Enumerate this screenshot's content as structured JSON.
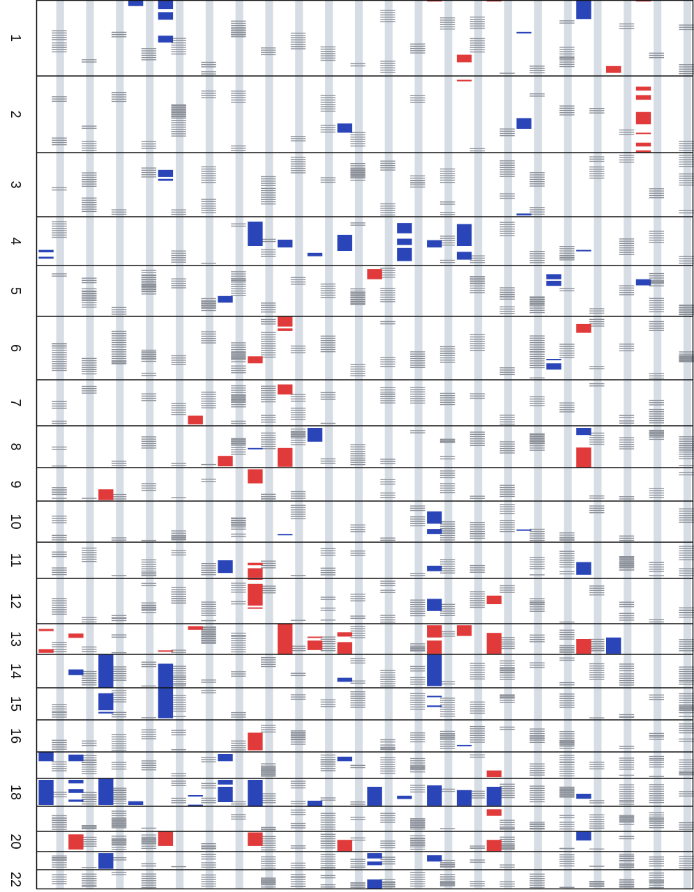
{
  "title": "",
  "colors": {
    "gain": "#e03a3a",
    "loss": "#2a45b8",
    "marker": "#8a8f98",
    "lane": "#d7dde4",
    "border": "#111111",
    "background": "#ffffff"
  },
  "chart_data": {
    "type": "heatmap",
    "chromosomes": [
      "1",
      "2",
      "3",
      "4",
      "5",
      "6",
      "7",
      "8",
      "9",
      "10",
      "11",
      "12",
      "13",
      "14",
      "15",
      "16",
      "17",
      "18",
      "19",
      "20",
      "21",
      "22"
    ],
    "chromosome_labels": [
      "1",
      "2",
      "3",
      "4",
      "5",
      "6",
      "7",
      "8",
      "9",
      "10",
      "11",
      "12",
      "13",
      "14",
      "15",
      "16",
      "",
      "18",
      "",
      "20",
      "",
      "22"
    ],
    "sample_count": 22,
    "relative_lengths": [
      1.0,
      1.0,
      0.85,
      0.65,
      0.67,
      0.85,
      0.61,
      0.55,
      0.45,
      0.53,
      0.47,
      0.59,
      0.41,
      0.44,
      0.42,
      0.42,
      0.35,
      0.38,
      0.33,
      0.28,
      0.22,
      0.27
    ],
    "segments": [
      {
        "chr": "1",
        "sample": 3,
        "start": 0.0,
        "end": 0.08,
        "state": "loss"
      },
      {
        "chr": "1",
        "sample": 4,
        "start": 0.0,
        "end": 0.12,
        "state": "loss"
      },
      {
        "chr": "1",
        "sample": 4,
        "start": 0.16,
        "end": 0.26,
        "state": "loss"
      },
      {
        "chr": "1",
        "sample": 4,
        "start": 0.47,
        "end": 0.56,
        "state": "loss"
      },
      {
        "chr": "1",
        "sample": 13,
        "start": 0.0,
        "end": 0.02,
        "state": "gain"
      },
      {
        "chr": "1",
        "sample": 14,
        "start": 0.72,
        "end": 0.82,
        "state": "gain"
      },
      {
        "chr": "1",
        "sample": 15,
        "start": 0.0,
        "end": 0.02,
        "state": "gain"
      },
      {
        "chr": "1",
        "sample": 16,
        "start": 0.42,
        "end": 0.44,
        "state": "loss"
      },
      {
        "chr": "1",
        "sample": 18,
        "start": 0.0,
        "end": 0.25,
        "state": "loss"
      },
      {
        "chr": "1",
        "sample": 19,
        "start": 0.87,
        "end": 0.96,
        "state": "gain"
      },
      {
        "chr": "1",
        "sample": 20,
        "start": 0.0,
        "end": 0.02,
        "state": "gain"
      },
      {
        "chr": "2",
        "sample": 10,
        "start": 0.62,
        "end": 0.74,
        "state": "loss"
      },
      {
        "chr": "2",
        "sample": 14,
        "start": 0.05,
        "end": 0.07,
        "state": "gain"
      },
      {
        "chr": "2",
        "sample": 16,
        "start": 0.55,
        "end": 0.69,
        "state": "loss"
      },
      {
        "chr": "2",
        "sample": 20,
        "start": 0.14,
        "end": 0.19,
        "state": "gain"
      },
      {
        "chr": "2",
        "sample": 20,
        "start": 0.25,
        "end": 0.31,
        "state": "gain"
      },
      {
        "chr": "2",
        "sample": 20,
        "start": 0.47,
        "end": 0.63,
        "state": "gain"
      },
      {
        "chr": "2",
        "sample": 20,
        "start": 0.74,
        "end": 0.75,
        "state": "gain"
      },
      {
        "chr": "2",
        "sample": 20,
        "start": 0.87,
        "end": 0.92,
        "state": "gain"
      },
      {
        "chr": "2",
        "sample": 20,
        "start": 0.97,
        "end": 1.0,
        "state": "gain"
      },
      {
        "chr": "3",
        "sample": 4,
        "start": 0.27,
        "end": 0.38,
        "state": "loss"
      },
      {
        "chr": "3",
        "sample": 4,
        "start": 0.41,
        "end": 0.44,
        "state": "loss"
      },
      {
        "chr": "3",
        "sample": 16,
        "start": 0.95,
        "end": 0.98,
        "state": "loss"
      },
      {
        "chr": "4",
        "sample": 0,
        "start": 0.68,
        "end": 0.73,
        "state": "loss"
      },
      {
        "chr": "4",
        "sample": 0,
        "start": 0.82,
        "end": 0.86,
        "state": "loss"
      },
      {
        "chr": "4",
        "sample": 7,
        "start": 0.1,
        "end": 0.6,
        "state": "loss"
      },
      {
        "chr": "4",
        "sample": 8,
        "start": 0.47,
        "end": 0.63,
        "state": "loss"
      },
      {
        "chr": "4",
        "sample": 9,
        "start": 0.74,
        "end": 0.81,
        "state": "loss"
      },
      {
        "chr": "4",
        "sample": 10,
        "start": 0.37,
        "end": 0.7,
        "state": "loss"
      },
      {
        "chr": "4",
        "sample": 12,
        "start": 0.13,
        "end": 0.34,
        "state": "loss"
      },
      {
        "chr": "4",
        "sample": 12,
        "start": 0.45,
        "end": 0.58,
        "state": "loss"
      },
      {
        "chr": "4",
        "sample": 12,
        "start": 0.64,
        "end": 0.91,
        "state": "loss"
      },
      {
        "chr": "4",
        "sample": 13,
        "start": 0.48,
        "end": 0.63,
        "state": "loss"
      },
      {
        "chr": "4",
        "sample": 14,
        "start": 0.15,
        "end": 0.6,
        "state": "loss"
      },
      {
        "chr": "4",
        "sample": 14,
        "start": 0.72,
        "end": 0.88,
        "state": "loss"
      },
      {
        "chr": "4",
        "sample": 18,
        "start": 0.68,
        "end": 0.71,
        "state": "loss"
      },
      {
        "chr": "5",
        "sample": 11,
        "start": 0.07,
        "end": 0.27,
        "state": "gain"
      },
      {
        "chr": "5",
        "sample": 6,
        "start": 0.6,
        "end": 0.73,
        "state": "loss"
      },
      {
        "chr": "5",
        "sample": 17,
        "start": 0.17,
        "end": 0.27,
        "state": "loss"
      },
      {
        "chr": "5",
        "sample": 17,
        "start": 0.3,
        "end": 0.4,
        "state": "loss"
      },
      {
        "chr": "5",
        "sample": 20,
        "start": 0.27,
        "end": 0.39,
        "state": "loss"
      },
      {
        "chr": "6",
        "sample": 8,
        "start": 0.0,
        "end": 0.16,
        "state": "gain"
      },
      {
        "chr": "6",
        "sample": 8,
        "start": 0.19,
        "end": 0.23,
        "state": "gain"
      },
      {
        "chr": "6",
        "sample": 18,
        "start": 0.12,
        "end": 0.26,
        "state": "gain"
      },
      {
        "chr": "6",
        "sample": 7,
        "start": 0.63,
        "end": 0.74,
        "state": "gain"
      },
      {
        "chr": "6",
        "sample": 17,
        "start": 0.67,
        "end": 0.69,
        "state": "loss"
      },
      {
        "chr": "6",
        "sample": 17,
        "start": 0.74,
        "end": 0.84,
        "state": "loss"
      },
      {
        "chr": "7",
        "sample": 8,
        "start": 0.1,
        "end": 0.32,
        "state": "gain"
      },
      {
        "chr": "7",
        "sample": 5,
        "start": 0.78,
        "end": 0.97,
        "state": "gain"
      },
      {
        "chr": "8",
        "sample": 7,
        "start": 0.53,
        "end": 0.55,
        "state": "loss"
      },
      {
        "chr": "8",
        "sample": 9,
        "start": 0.05,
        "end": 0.38,
        "state": "loss"
      },
      {
        "chr": "8",
        "sample": 8,
        "start": 0.53,
        "end": 0.98,
        "state": "gain"
      },
      {
        "chr": "8",
        "sample": 6,
        "start": 0.72,
        "end": 0.97,
        "state": "gain"
      },
      {
        "chr": "8",
        "sample": 18,
        "start": 0.05,
        "end": 0.22,
        "state": "loss"
      },
      {
        "chr": "8",
        "sample": 18,
        "start": 0.52,
        "end": 1.0,
        "state": "gain"
      },
      {
        "chr": "9",
        "sample": 2,
        "start": 0.65,
        "end": 0.97,
        "state": "gain"
      },
      {
        "chr": "9",
        "sample": 7,
        "start": 0.05,
        "end": 0.47,
        "state": "gain"
      },
      {
        "chr": "10",
        "sample": 13,
        "start": 0.25,
        "end": 0.55,
        "state": "loss"
      },
      {
        "chr": "10",
        "sample": 13,
        "start": 0.68,
        "end": 0.8,
        "state": "loss"
      },
      {
        "chr": "10",
        "sample": 8,
        "start": 0.8,
        "end": 0.83,
        "state": "loss"
      },
      {
        "chr": "10",
        "sample": 16,
        "start": 0.69,
        "end": 0.72,
        "state": "loss"
      },
      {
        "chr": "11",
        "sample": 6,
        "start": 0.5,
        "end": 0.85,
        "state": "loss"
      },
      {
        "chr": "11",
        "sample": 7,
        "start": 0.57,
        "end": 0.64,
        "state": "gain"
      },
      {
        "chr": "11",
        "sample": 7,
        "start": 0.72,
        "end": 0.98,
        "state": "gain"
      },
      {
        "chr": "11",
        "sample": 7,
        "start": 1.0,
        "end": 1.0,
        "state": "gain"
      },
      {
        "chr": "11",
        "sample": 13,
        "start": 0.65,
        "end": 0.8,
        "state": "loss"
      },
      {
        "chr": "11",
        "sample": 18,
        "start": 0.55,
        "end": 0.9,
        "state": "loss"
      },
      {
        "chr": "12",
        "sample": 7,
        "start": 0.12,
        "end": 0.6,
        "state": "gain"
      },
      {
        "chr": "12",
        "sample": 7,
        "start": 0.64,
        "end": 0.66,
        "state": "gain"
      },
      {
        "chr": "12",
        "sample": 13,
        "start": 0.45,
        "end": 0.72,
        "state": "loss"
      },
      {
        "chr": "12",
        "sample": 15,
        "start": 0.38,
        "end": 0.57,
        "state": "gain"
      },
      {
        "chr": "13",
        "sample": 0,
        "start": 0.17,
        "end": 0.24,
        "state": "gain"
      },
      {
        "chr": "13",
        "sample": 0,
        "start": 0.83,
        "end": 0.95,
        "state": "gain"
      },
      {
        "chr": "13",
        "sample": 1,
        "start": 0.32,
        "end": 0.46,
        "state": "gain"
      },
      {
        "chr": "13",
        "sample": 4,
        "start": 0.87,
        "end": 0.9,
        "state": "gain"
      },
      {
        "chr": "13",
        "sample": 5,
        "start": 0.08,
        "end": 0.2,
        "state": "gain"
      },
      {
        "chr": "13",
        "sample": 8,
        "start": 0.0,
        "end": 1.0,
        "state": "gain"
      },
      {
        "chr": "13",
        "sample": 9,
        "start": 0.42,
        "end": 0.46,
        "state": "gain"
      },
      {
        "chr": "13",
        "sample": 9,
        "start": 0.55,
        "end": 0.86,
        "state": "gain"
      },
      {
        "chr": "13",
        "sample": 10,
        "start": 0.28,
        "end": 0.42,
        "state": "gain"
      },
      {
        "chr": "13",
        "sample": 10,
        "start": 0.6,
        "end": 0.98,
        "state": "gain"
      },
      {
        "chr": "13",
        "sample": 13,
        "start": 0.05,
        "end": 0.45,
        "state": "gain"
      },
      {
        "chr": "13",
        "sample": 13,
        "start": 0.55,
        "end": 0.98,
        "state": "gain"
      },
      {
        "chr": "13",
        "sample": 14,
        "start": 0.05,
        "end": 0.4,
        "state": "gain"
      },
      {
        "chr": "13",
        "sample": 15,
        "start": 0.3,
        "end": 0.98,
        "state": "gain"
      },
      {
        "chr": "13",
        "sample": 18,
        "start": 0.5,
        "end": 0.98,
        "state": "gain"
      },
      {
        "chr": "13",
        "sample": 19,
        "start": 0.45,
        "end": 0.98,
        "state": "loss"
      },
      {
        "chr": "14",
        "sample": 1,
        "start": 0.45,
        "end": 0.62,
        "state": "loss"
      },
      {
        "chr": "14",
        "sample": 2,
        "start": 0.0,
        "end": 1.0,
        "state": "loss"
      },
      {
        "chr": "14",
        "sample": 4,
        "start": 0.28,
        "end": 1.0,
        "state": "loss"
      },
      {
        "chr": "14",
        "sample": 10,
        "start": 0.7,
        "end": 0.82,
        "state": "loss"
      },
      {
        "chr": "14",
        "sample": 13,
        "start": 0.0,
        "end": 0.95,
        "state": "loss"
      },
      {
        "chr": "15",
        "sample": 2,
        "start": 0.17,
        "end": 0.7,
        "state": "loss"
      },
      {
        "chr": "15",
        "sample": 2,
        "start": 0.75,
        "end": 0.8,
        "state": "loss"
      },
      {
        "chr": "15",
        "sample": 4,
        "start": 0.0,
        "end": 0.95,
        "state": "loss"
      },
      {
        "chr": "15",
        "sample": 13,
        "start": 0.25,
        "end": 0.27,
        "state": "loss"
      },
      {
        "chr": "15",
        "sample": 13,
        "start": 0.55,
        "end": 0.6,
        "state": "loss"
      },
      {
        "chr": "16",
        "sample": 7,
        "start": 0.4,
        "end": 0.95,
        "state": "gain"
      },
      {
        "chr": "16",
        "sample": 14,
        "start": 0.78,
        "end": 0.82,
        "state": "loss"
      },
      {
        "chr": "17",
        "sample": 0,
        "start": 0.0,
        "end": 0.35,
        "state": "loss"
      },
      {
        "chr": "17",
        "sample": 1,
        "start": 0.1,
        "end": 0.35,
        "state": "loss"
      },
      {
        "chr": "17",
        "sample": 6,
        "start": 0.08,
        "end": 0.35,
        "state": "loss"
      },
      {
        "chr": "17",
        "sample": 10,
        "start": 0.18,
        "end": 0.35,
        "state": "loss"
      },
      {
        "chr": "17",
        "sample": 15,
        "start": 0.7,
        "end": 0.95,
        "state": "gain"
      },
      {
        "chr": "18",
        "sample": 0,
        "start": 0.05,
        "end": 0.95,
        "state": "loss"
      },
      {
        "chr": "18",
        "sample": 1,
        "start": 0.05,
        "end": 0.18,
        "state": "loss"
      },
      {
        "chr": "18",
        "sample": 1,
        "start": 0.38,
        "end": 0.52,
        "state": "loss"
      },
      {
        "chr": "18",
        "sample": 1,
        "start": 0.76,
        "end": 0.84,
        "state": "loss"
      },
      {
        "chr": "18",
        "sample": 2,
        "start": 0.0,
        "end": 0.95,
        "state": "loss"
      },
      {
        "chr": "18",
        "sample": 3,
        "start": 0.82,
        "end": 0.95,
        "state": "loss"
      },
      {
        "chr": "18",
        "sample": 5,
        "start": 0.6,
        "end": 0.64,
        "state": "loss"
      },
      {
        "chr": "18",
        "sample": 5,
        "start": 0.94,
        "end": 0.97,
        "state": "loss"
      },
      {
        "chr": "18",
        "sample": 6,
        "start": 0.05,
        "end": 0.22,
        "state": "loss"
      },
      {
        "chr": "18",
        "sample": 6,
        "start": 0.3,
        "end": 0.85,
        "state": "loss"
      },
      {
        "chr": "18",
        "sample": 7,
        "start": 0.05,
        "end": 1.0,
        "state": "loss"
      },
      {
        "chr": "18",
        "sample": 9,
        "start": 0.8,
        "end": 1.0,
        "state": "loss"
      },
      {
        "chr": "18",
        "sample": 11,
        "start": 0.3,
        "end": 0.98,
        "state": "loss"
      },
      {
        "chr": "18",
        "sample": 12,
        "start": 0.62,
        "end": 0.74,
        "state": "loss"
      },
      {
        "chr": "18",
        "sample": 13,
        "start": 0.25,
        "end": 0.98,
        "state": "loss"
      },
      {
        "chr": "18",
        "sample": 14,
        "start": 0.42,
        "end": 0.98,
        "state": "loss"
      },
      {
        "chr": "18",
        "sample": 15,
        "start": 0.3,
        "end": 0.98,
        "state": "loss"
      },
      {
        "chr": "18",
        "sample": 18,
        "start": 0.55,
        "end": 0.73,
        "state": "loss"
      },
      {
        "chr": "19",
        "sample": 15,
        "start": 0.12,
        "end": 0.38,
        "state": "gain"
      },
      {
        "chr": "20",
        "sample": 1,
        "start": 0.15,
        "end": 0.9,
        "state": "gain"
      },
      {
        "chr": "20",
        "sample": 4,
        "start": 0.0,
        "end": 0.72,
        "state": "gain"
      },
      {
        "chr": "20",
        "sample": 7,
        "start": 0.05,
        "end": 0.72,
        "state": "gain"
      },
      {
        "chr": "20",
        "sample": 10,
        "start": 0.42,
        "end": 0.98,
        "state": "gain"
      },
      {
        "chr": "20",
        "sample": 15,
        "start": 0.42,
        "end": 0.98,
        "state": "gain"
      },
      {
        "chr": "20",
        "sample": 18,
        "start": 0.0,
        "end": 0.45,
        "state": "loss"
      },
      {
        "chr": "21",
        "sample": 2,
        "start": 0.08,
        "end": 0.95,
        "state": "loss"
      },
      {
        "chr": "21",
        "sample": 11,
        "start": 0.08,
        "end": 0.38,
        "state": "loss"
      },
      {
        "chr": "21",
        "sample": 11,
        "start": 0.55,
        "end": 0.75,
        "state": "loss"
      },
      {
        "chr": "21",
        "sample": 13,
        "start": 0.2,
        "end": 0.55,
        "state": "loss"
      },
      {
        "chr": "22",
        "sample": 11,
        "start": 0.5,
        "end": 1.0,
        "state": "loss"
      }
    ]
  }
}
